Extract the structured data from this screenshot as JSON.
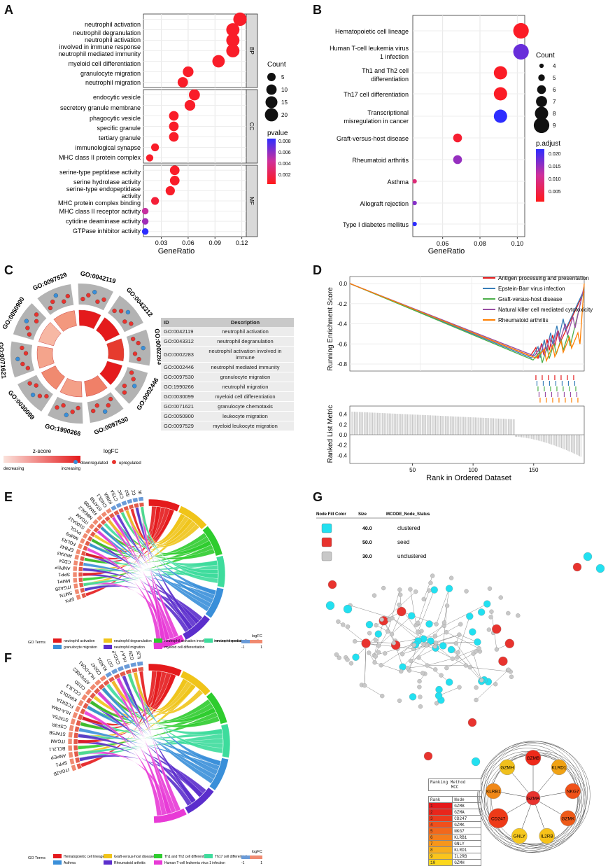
{
  "panels": {
    "a": "A",
    "b": "B",
    "c": "C",
    "d": "D",
    "e": "E",
    "f": "F",
    "g": "G"
  },
  "panel_a": {
    "xlabel": "GeneRatio",
    "xticks": [
      "0.03",
      "0.06",
      "0.09",
      "0.12"
    ],
    "facets": [
      "BP",
      "CC",
      "MF"
    ],
    "legend_count_title": "Count",
    "legend_count_values": [
      "5",
      "10",
      "15",
      "20"
    ],
    "legend_p_title": "pvalue",
    "legend_p_values": [
      "0.008",
      "0.006",
      "0.004",
      "0.002"
    ],
    "bp_terms": [
      "neutrophil activation",
      "neutrophil degranulation",
      "neutrophil activation",
      "involved in immune response",
      "neutrophil mediated immunity",
      "myeloid cell differentiation",
      "granulocyte migration",
      "neutrophil migration"
    ],
    "cc_terms": [
      "endocytic vesicle",
      "secretory granule membrane",
      "phagocytic vesicle",
      "specific granule",
      "tertiary granule",
      "immunological synapse",
      "MHC class II protein complex"
    ],
    "mf_terms": [
      "serine-type peptidase activity",
      "serine hydrolase activity",
      "serine-type endopeptidase",
      "activity",
      "MHC protein complex binding",
      "MHC class II receptor activity",
      "cytidine deaminase activity",
      "GTPase inhibitor activity"
    ]
  },
  "chart_data": [
    {
      "type": "scatter",
      "title": "GO enrichment",
      "xlabel": "GeneRatio",
      "xlim": [
        0.01,
        0.125
      ],
      "points": [
        {
          "term": "neutrophil activation",
          "facet": "BP",
          "x": 0.118,
          "count": 21,
          "p": 0.0005
        },
        {
          "term": "neutrophil degranulation",
          "facet": "BP",
          "x": 0.11,
          "count": 20,
          "p": 0.0005
        },
        {
          "term": "neutrophil activation involved in immune response",
          "facet": "BP",
          "x": 0.11,
          "count": 20,
          "p": 0.0005
        },
        {
          "term": "neutrophil mediated immunity",
          "facet": "BP",
          "x": 0.11,
          "count": 20,
          "p": 0.0005
        },
        {
          "term": "myeloid cell differentiation",
          "facet": "BP",
          "x": 0.094,
          "count": 17,
          "p": 0.0005
        },
        {
          "term": "granulocyte migration",
          "facet": "BP",
          "x": 0.06,
          "count": 11,
          "p": 0.0005
        },
        {
          "term": "neutrophil migration",
          "facet": "BP",
          "x": 0.054,
          "count": 10,
          "p": 0.0005
        },
        {
          "term": "endocytic vesicle",
          "facet": "CC",
          "x": 0.067,
          "count": 12,
          "p": 0.0005
        },
        {
          "term": "secretory granule membrane",
          "facet": "CC",
          "x": 0.062,
          "count": 11,
          "p": 0.0005
        },
        {
          "term": "phagocytic vesicle",
          "facet": "CC",
          "x": 0.044,
          "count": 8,
          "p": 0.0005
        },
        {
          "term": "specific granule",
          "facet": "CC",
          "x": 0.044,
          "count": 8,
          "p": 0.0005
        },
        {
          "term": "tertiary granule",
          "facet": "CC",
          "x": 0.044,
          "count": 8,
          "p": 0.0005
        },
        {
          "term": "immunological synapse",
          "facet": "CC",
          "x": 0.023,
          "count": 4,
          "p": 0.0005
        },
        {
          "term": "MHC class II protein complex",
          "facet": "CC",
          "x": 0.017,
          "count": 3,
          "p": 0.0005
        },
        {
          "term": "serine-type peptidase activity",
          "facet": "MF",
          "x": 0.045,
          "count": 8,
          "p": 0.0005
        },
        {
          "term": "serine hydrolase activity",
          "facet": "MF",
          "x": 0.045,
          "count": 8,
          "p": 0.0005
        },
        {
          "term": "serine-type endopeptidase activity",
          "facet": "MF",
          "x": 0.04,
          "count": 7,
          "p": 0.0005
        },
        {
          "term": "MHC protein complex binding",
          "facet": "MF",
          "x": 0.023,
          "count": 4,
          "p": 0.001
        },
        {
          "term": "MHC class II receptor activity",
          "facet": "MF",
          "x": 0.012,
          "count": 2,
          "p": 0.0045
        },
        {
          "term": "cytidine deaminase activity",
          "facet": "MF",
          "x": 0.012,
          "count": 2,
          "p": 0.0055
        },
        {
          "term": "GTPase inhibitor activity",
          "facet": "MF",
          "x": 0.012,
          "count": 2,
          "p": 0.0085
        }
      ]
    },
    {
      "type": "scatter",
      "title": "KEGG enrichment",
      "xlabel": "GeneRatio",
      "xlim": [
        0.044,
        0.104
      ],
      "points": [
        {
          "term": "Hematopoietic cell lineage",
          "x": 0.102,
          "count": 9,
          "padj": 0.001
        },
        {
          "term": "Human T-cell leukemia virus 1 infection",
          "x": 0.102,
          "count": 9,
          "padj": 0.018
        },
        {
          "term": "Th1 and Th2 cell differentiation",
          "x": 0.091,
          "count": 8,
          "padj": 0.001
        },
        {
          "term": "Th17 cell differentiation",
          "x": 0.091,
          "count": 8,
          "padj": 0.001
        },
        {
          "term": "Transcriptional misregulation in cancer",
          "x": 0.091,
          "count": 8,
          "padj": 0.023
        },
        {
          "term": "Graft-versus-host disease",
          "x": 0.068,
          "count": 6,
          "padj": 0.002
        },
        {
          "term": "Rheumatoid arthritis",
          "x": 0.068,
          "count": 6,
          "padj": 0.015
        },
        {
          "term": "Asthma",
          "x": 0.045,
          "count": 4,
          "padj": 0.008
        },
        {
          "term": "Allograft rejection",
          "x": 0.045,
          "count": 4,
          "padj": 0.016
        },
        {
          "term": "Type I diabetes mellitus",
          "x": 0.045,
          "count": 4,
          "padj": 0.022
        }
      ]
    }
  ],
  "panel_b": {
    "xlabel": "GeneRatio",
    "xticks": [
      "0.06",
      "0.08",
      "0.10"
    ],
    "terms": [
      "Hematopoietic cell lineage",
      "Human T-cell leukemia virus",
      "1 infection",
      "Th1 and Th2 cell",
      "differentiation",
      "Th17 cell differentiation",
      "Transcriptional",
      "misregulation in cancer",
      "Graft-versus-host disease",
      "Rheumatoid arthritis",
      "Asthma",
      "Allograft rejection",
      "Type I diabetes mellitus"
    ],
    "legend_count_title": "Count",
    "legend_count_values": [
      "4",
      "5",
      "6",
      "7",
      "8",
      "9"
    ],
    "legend_p_title": "p.adjust",
    "legend_p_values": [
      "0.020",
      "0.015",
      "0.010",
      "0.005"
    ]
  },
  "panel_c": {
    "go_ids": [
      "GO:0042119",
      "GO:0043312",
      "GO:0002283",
      "GO:0002446",
      "GO:0097530",
      "GO:1990266",
      "GO:0030099",
      "GO:0071621",
      "GO:0050900",
      "GO:0097529"
    ],
    "table_header": [
      "ID",
      "Description"
    ],
    "table_rows": [
      [
        "GO:0042119",
        "neutrophil activation"
      ],
      [
        "GO:0043312",
        "neutrophil degranulation"
      ],
      [
        "GO:0002283",
        "neutrophil activation involved in immune"
      ],
      [
        "GO:0002446",
        "neutrophil mediated immunity"
      ],
      [
        "GO:0097530",
        "granulocyte migration"
      ],
      [
        "GO:1990266",
        "neutrophil migration"
      ],
      [
        "GO:0030099",
        "myeloid cell differentiation"
      ],
      [
        "GO:0071621",
        "granulocyte chemotaxis"
      ],
      [
        "GO:0050900",
        "leukocyte migration"
      ],
      [
        "GO:0097529",
        "myeloid leukocyte migration"
      ]
    ],
    "zscore_title": "z-score",
    "zscore_low": "decreasing",
    "zscore_high": "increasing",
    "logfc_title": "logFC",
    "logfc_down": "downregulated",
    "logfc_up": "upregulated"
  },
  "panel_d": {
    "legend": [
      {
        "name": "Antigen processing and presentation",
        "color": "#e41a1c"
      },
      {
        "name": "Epstein-Barr virus infection",
        "color": "#377eb8"
      },
      {
        "name": "Graft-versus-host disease",
        "color": "#4daf4a"
      },
      {
        "name": "Natural killer cell mediated cytotoxicity",
        "color": "#984ea3"
      },
      {
        "name": "Rheumatoid arthritis",
        "color": "#ff7f00"
      }
    ],
    "y1_label": "Running Enrichment Score",
    "y1_ticks": [
      "0.0",
      "-0.2",
      "-0.4",
      "-0.6",
      "-0.8"
    ],
    "y2_label": "Ranked List Metric",
    "y2_ticks": [
      "0.4",
      "0.2",
      "0.0",
      "-0.2",
      "-0.4"
    ],
    "xlabel": "Rank in Ordered Dataset",
    "xticks": [
      "50",
      "100",
      "150"
    ]
  },
  "panel_e": {
    "genes": [
      "EPX",
      "SMTN",
      "ITGA2B",
      "MMP1",
      "SPP1",
      "ANPEP",
      "CD24",
      "ANXA3",
      "EPB42",
      "FOLR3",
      "MMP9",
      "PYGL",
      "S100A12",
      "ITGAM",
      "NBEAL2",
      "FAM20B",
      "STAT5B",
      "CHI3L1",
      "KRBA",
      "CTSA",
      "CXCL8",
      "ID2",
      "CD81",
      "IKZF1"
    ],
    "legend_go_label": "GO Terms",
    "terms": [
      {
        "name": "neutrophil activation",
        "color": "#e41a1c"
      },
      {
        "name": "neutrophil degranulation",
        "color": "#f0c419"
      },
      {
        "name": "neutrophil activation involved in immune response",
        "color": "#2ecc2e"
      },
      {
        "name": "neutrophil mediated immunity",
        "color": "#3ddc9c"
      },
      {
        "name": "granulocyte migration",
        "color": "#3a8fd9"
      },
      {
        "name": "neutrophil migration",
        "color": "#5b2ecc"
      },
      {
        "name": "myeloid cell differentiation",
        "color": "#e83ad6"
      }
    ],
    "logfc_label": "logFC",
    "logfc_min": "-1",
    "logfc_max": "1"
  },
  "panel_f": {
    "genes": [
      "ITGA2B",
      "SPP1",
      "ANPEP",
      "BCL2L1",
      "ITGAM",
      "STAT5B",
      "CSF3R",
      "STAT5A",
      "HLA-DMA",
      "FCER1A",
      "KIR2DL3",
      "CCL3L3",
      "CD3D",
      "ATP6V0E2",
      "HLA-DQA1",
      "CD247",
      "KLRD1",
      "CD7",
      "CXCL8",
      "HLA-DQA2",
      "GZMB",
      "IL2RB"
    ],
    "legend_go_label": "GO Terms",
    "terms": [
      {
        "name": "Hematopoietic cell lineage",
        "color": "#e41a1c"
      },
      {
        "name": "Graft-versus-host disease",
        "color": "#f0c419"
      },
      {
        "name": "Th1 and Th2 cell differentiation",
        "color": "#2ecc2e"
      },
      {
        "name": "Th17 cell differentiation",
        "color": "#3ddc9c"
      },
      {
        "name": "Asthma",
        "color": "#3a8fd9"
      },
      {
        "name": "Rheumatoid arthritis",
        "color": "#5b2ecc"
      },
      {
        "name": "Human T-cell leukemia virus 1 infection",
        "color": "#e83ad6"
      }
    ],
    "logfc_label": "logFC",
    "logfc_min": "-1",
    "logfc_max": "1"
  },
  "panel_g": {
    "legend_header": [
      "Node Fill Color",
      "Size",
      "MCODE_Node_Status"
    ],
    "legend_rows": [
      {
        "size": "40.0",
        "status": "clustered",
        "color": "#22e0f0"
      },
      {
        "size": "50.0",
        "status": "seed",
        "color": "#e8332e"
      },
      {
        "size": "30.0",
        "status": "unclustered",
        "color": "#c8c8c8"
      }
    ],
    "ranking_title": "Ranking Method",
    "ranking_method": "MCC",
    "rank_header": [
      "Rank",
      "Node"
    ],
    "rank_rows": [
      [
        "1",
        "GZMB"
      ],
      [
        "2",
        "GZMA"
      ],
      [
        "3",
        "CD247"
      ],
      [
        "4",
        "GZMK"
      ],
      [
        "5",
        "NKG7"
      ],
      [
        "6",
        "KLRB1"
      ],
      [
        "7",
        "GNLY"
      ],
      [
        "8",
        "KLRD1"
      ],
      [
        "9",
        "IL2RB"
      ],
      [
        "10",
        "GZMH"
      ]
    ],
    "hub_nodes": [
      "GZMA",
      "GZMB",
      "KLRD1",
      "NKG7",
      "GZMK",
      "IL2RB",
      "GNLY",
      "CD247",
      "KLRB1",
      "GZMH"
    ]
  }
}
